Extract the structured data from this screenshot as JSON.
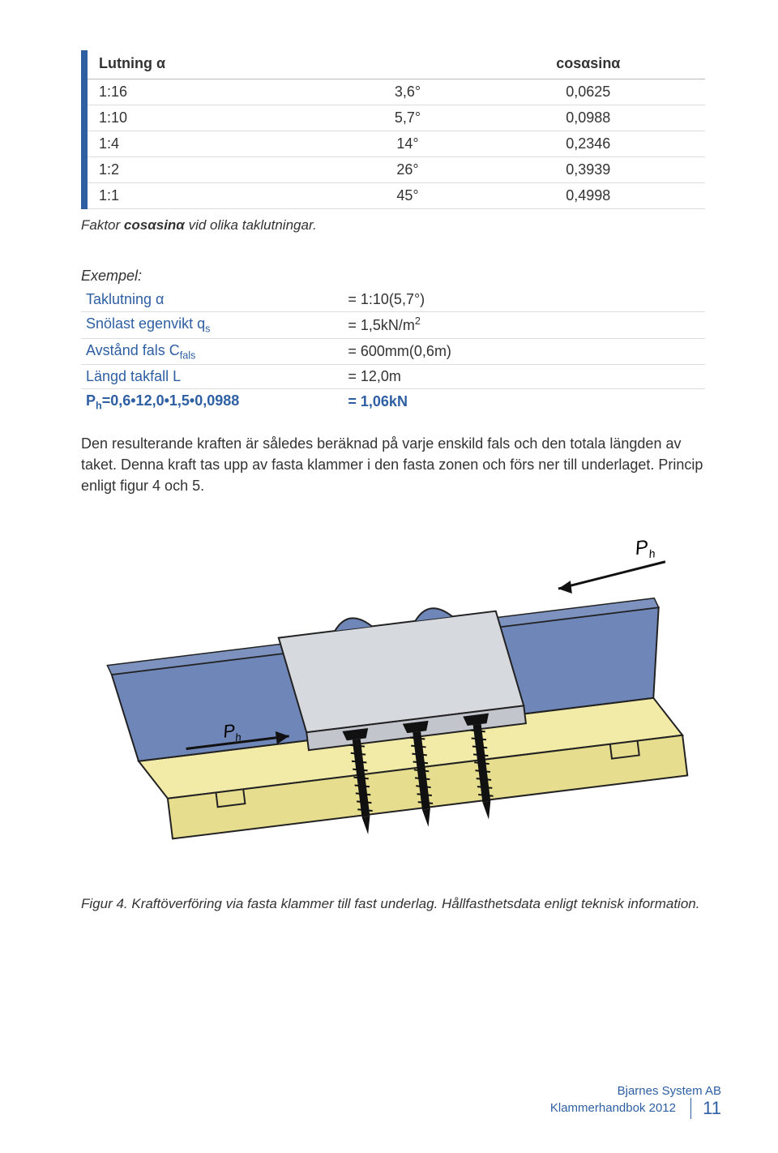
{
  "table1": {
    "headers": [
      "Lutning α",
      "",
      "cosαsinα"
    ],
    "rows": [
      [
        "1:16",
        "3,6°",
        "0,0625"
      ],
      [
        "1:10",
        "5,7°",
        "0,0988"
      ],
      [
        "1:4",
        "14°",
        "0,2346"
      ],
      [
        "1:2",
        "26°",
        "0,3939"
      ],
      [
        "1:1",
        "45°",
        "0,4998"
      ]
    ],
    "caption": "Faktor cosαsinα vid olika taklutningar.",
    "accent_color": "#2e5fa3",
    "border_color": "#cccccc"
  },
  "example": {
    "title": "Exempel:",
    "rows": [
      {
        "label": "Taklutning α",
        "value": "= 1:10(5,7°)"
      },
      {
        "label": "Snölast egenvikt qₛ",
        "value": "= 1,5kN/m²"
      },
      {
        "label": "Avstånd fals C_fals",
        "value": "= 600mm(0,6m)"
      },
      {
        "label": "Längd takfall L",
        "value": "= 12,0m"
      }
    ],
    "result_label": "Pₕ=0,6•12,0•1,5•0,0988",
    "result_value": "= 1,06kN"
  },
  "paragraph": "Den resulterande kraften är således beräknad på varje enskild fals och den totala längden av taket. Denna kraft tas upp av fasta klammer i den fasta zonen och förs ner till underlaget. Princip enligt figur 4 och 5.",
  "figure": {
    "label_top_right": "Pₕ",
    "label_mid_left": "Pₕ",
    "caption": "Figur 4. Kraftöverföring via fasta klammer till fast underlag. Hållfasthetsdata enligt teknisk information.",
    "colors": {
      "roof_blue": "#6f86b8",
      "clamp_grey": "#d6d9de",
      "clamp_grey_dark": "#c2c6cc",
      "board_yellow": "#f2eaa7",
      "board_yellow_side": "#e7dd8f",
      "outline": "#222222",
      "screw": "#111111",
      "arrow": "#111111"
    }
  },
  "footer": {
    "line1": "Bjarnes System AB",
    "line2": "Klammerhandbok 2012",
    "page": "11"
  }
}
